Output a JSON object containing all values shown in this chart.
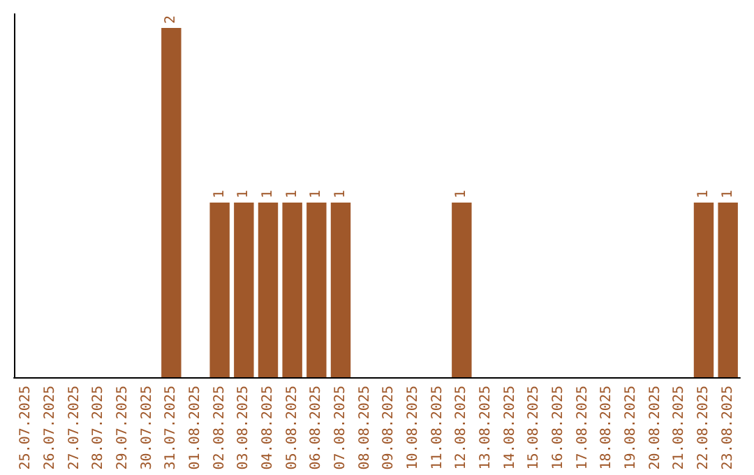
{
  "chart_data": {
    "type": "bar",
    "categories": [
      "25.07.2025",
      "26.07.2025",
      "27.07.2025",
      "28.07.2025",
      "29.07.2025",
      "30.07.2025",
      "31.07.2025",
      "01.08.2025",
      "02.08.2025",
      "03.08.2025",
      "04.08.2025",
      "05.08.2025",
      "06.08.2025",
      "07.08.2025",
      "08.08.2025",
      "09.08.2025",
      "10.08.2025",
      "11.08.2025",
      "12.08.2025",
      "13.08.2025",
      "14.08.2025",
      "15.08.2025",
      "16.08.2025",
      "17.08.2025",
      "18.08.2025",
      "19.08.2025",
      "20.08.2025",
      "21.08.2025",
      "22.08.2025",
      "23.08.2025"
    ],
    "values": [
      0,
      0,
      0,
      0,
      0,
      0,
      2,
      0,
      1,
      1,
      1,
      1,
      1,
      1,
      0,
      0,
      0,
      0,
      1,
      0,
      0,
      0,
      0,
      0,
      0,
      0,
      0,
      0,
      1,
      1
    ],
    "value_labels": [
      null,
      null,
      null,
      null,
      null,
      null,
      "2",
      null,
      "1",
      "1",
      "1",
      "1",
      "1",
      "1",
      null,
      null,
      null,
      null,
      "1",
      null,
      null,
      null,
      null,
      null,
      null,
      null,
      null,
      null,
      "1",
      "1"
    ],
    "color": "#a0582a",
    "tick_labels": "x"
  }
}
